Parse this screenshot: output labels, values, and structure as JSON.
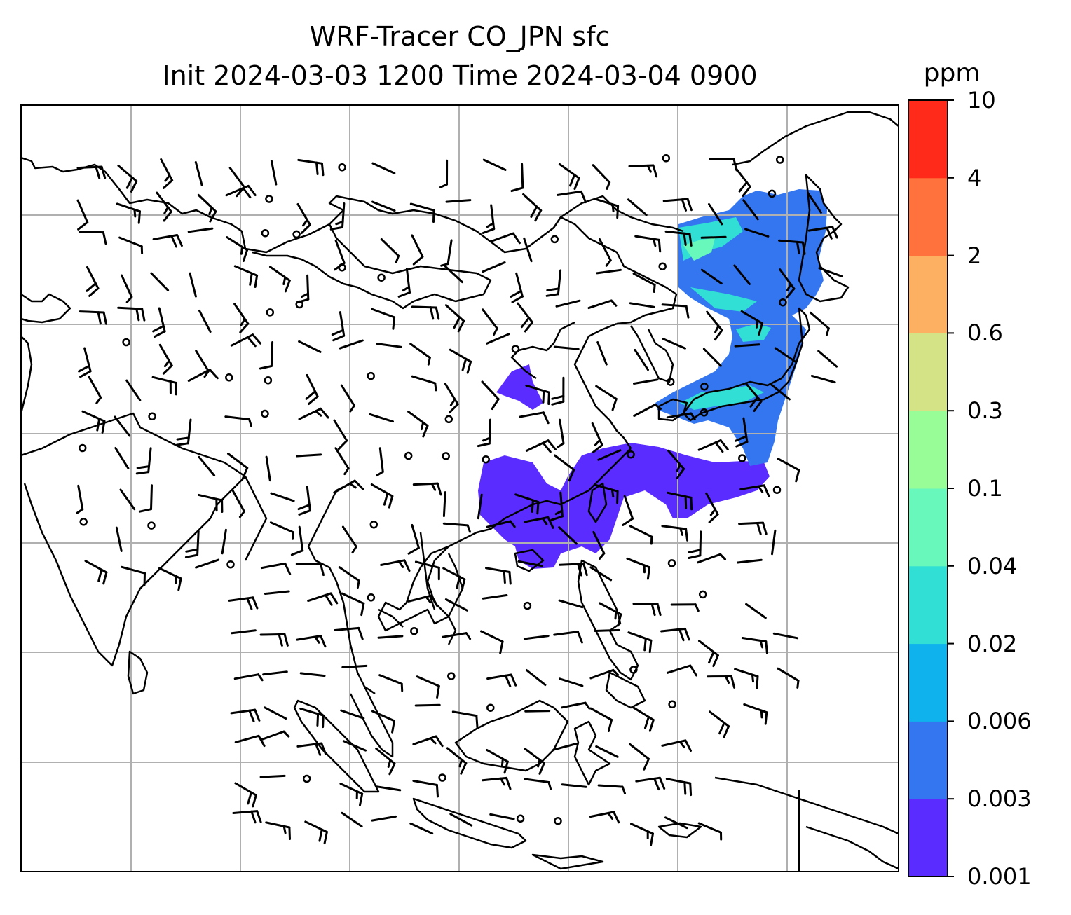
{
  "title": {
    "line1": "WRF-Tracer CO_JPN sfc",
    "line2": "Init 2024-03-03 1200 Time 2024-03-04 0900"
  },
  "colorbar": {
    "unit": "ppm",
    "levels": [
      "0.001",
      "0.003",
      "0.006",
      "0.02",
      "0.04",
      "0.1",
      "0.3",
      "0.6",
      "2",
      "4",
      "10"
    ],
    "colors": [
      "#5b2cff",
      "#3476f0",
      "#0fb2ec",
      "#31dfd4",
      "#68f8bc",
      "#98fd97",
      "#d4e385",
      "#fdb062",
      "#ff713d",
      "#ff2a19"
    ]
  },
  "map": {
    "projection_grid": "lat/lon gridlines",
    "tracer_fill_colors": [
      "#5b2cff",
      "#3476f0",
      "#31dfd4",
      "#68f8bc"
    ],
    "wind_barbs": true,
    "calm_markers": true
  }
}
